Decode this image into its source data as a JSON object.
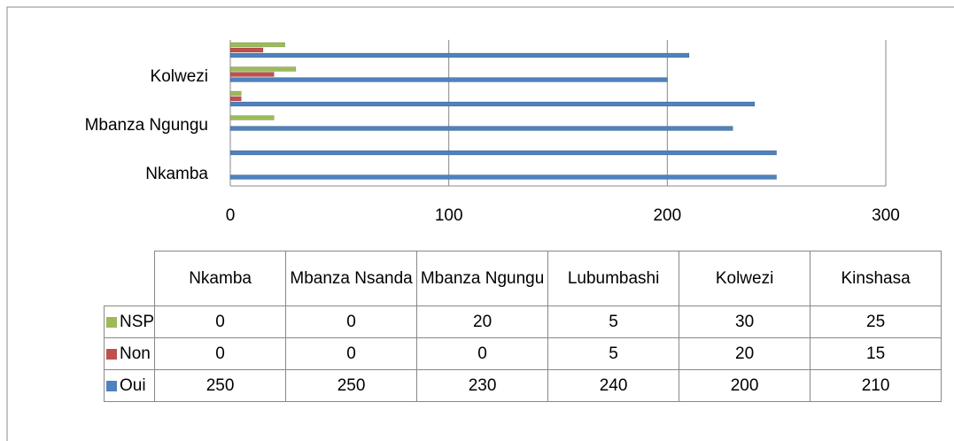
{
  "chart_data": {
    "type": "bar",
    "orientation": "horizontal",
    "categories": [
      "Nkamba",
      "Mbanza Nsanda",
      "Mbanza Ngungu",
      "Lubumbashi",
      "Kolwezi",
      "Kinshasa"
    ],
    "series": [
      {
        "name": "NSP",
        "color": "#9bbb59",
        "values": [
          0,
          0,
          20,
          5,
          30,
          25
        ]
      },
      {
        "name": "Non",
        "color": "#c0504d",
        "values": [
          0,
          0,
          0,
          5,
          20,
          15
        ]
      },
      {
        "name": "Oui",
        "color": "#4f81bd",
        "values": [
          250,
          250,
          230,
          240,
          200,
          210
        ]
      }
    ],
    "xlim": [
      0,
      300
    ],
    "xticks": [
      0,
      100,
      200,
      300
    ],
    "grid": true
  }
}
